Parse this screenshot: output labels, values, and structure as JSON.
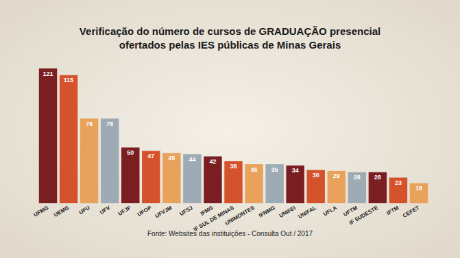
{
  "chart_data": {
    "type": "bar",
    "title": "Verificação do número de cursos de GRADUAÇÃO presencial\nofertados pelas IES públicas de Minas Gerais",
    "source": "Fonte: Websites das instituições - Consulta Out / 2017",
    "categories": [
      "UFMG",
      "UEMG",
      "UFU",
      "UFV",
      "UFJF",
      "UFOP",
      "UFVJM",
      "UFSJ",
      "IFMG",
      "IF SUL DE MINAS",
      "UNIMONTES",
      "IFNMG",
      "UNIFEI",
      "UNIFAL",
      "UFLA",
      "UFTM",
      "IF SUDESTE",
      "IFTM",
      "CEFET"
    ],
    "values": [
      121,
      115,
      76,
      76,
      50,
      47,
      45,
      44,
      42,
      38,
      35,
      35,
      34,
      30,
      29,
      28,
      28,
      23,
      18
    ],
    "colors": [
      "#7b1e22",
      "#d4532c",
      "#e8a25b",
      "#9eabb5",
      "#7b1e22",
      "#d4532c",
      "#e8a25b",
      "#9eabb5",
      "#7b1e22",
      "#d4532c",
      "#e8a25b",
      "#9eabb5",
      "#7b1e22",
      "#d4532c",
      "#e8a25b",
      "#9eabb5",
      "#7b1e22",
      "#d4532c",
      "#e8a25b"
    ],
    "data_labels": true,
    "tick_labels": "x",
    "grid": false
  }
}
